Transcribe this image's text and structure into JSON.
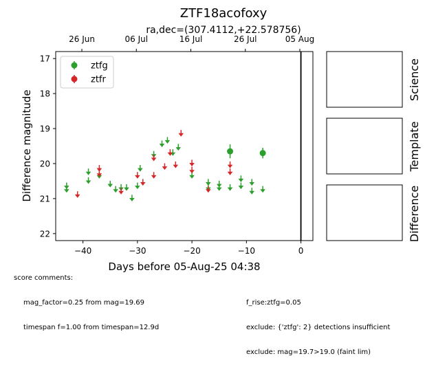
{
  "chart_data": {
    "type": "scatter",
    "title": "ZTF18acofoxy",
    "subtitle": "ra,dec=(307.4112,+22.578756)",
    "xlabel": "Days before 05-Aug-25 04:38",
    "ylabel": "Difference magnitude",
    "xlim": [
      -45,
      2.2
    ],
    "ylim": [
      22.2,
      16.8
    ],
    "y_inverted": true,
    "x_ticks": [
      -40,
      -30,
      -20,
      -10,
      0
    ],
    "y_ticks": [
      17,
      18,
      19,
      20,
      21,
      22
    ],
    "top_axis_ticks": [
      {
        "label": "26 Jun",
        "x": -40.2
      },
      {
        "label": "06 Jul",
        "x": -30.2
      },
      {
        "label": "16 Jul",
        "x": -20.2
      },
      {
        "label": "26 Jul",
        "x": -10.2
      },
      {
        "label": "05 Aug",
        "x": -0.2
      }
    ],
    "vertical_line_x": 0,
    "legend_position": "upper-left",
    "series": [
      {
        "name": "ztfg",
        "color": "#2ca02c",
        "upper_limits": [
          {
            "x": -43,
            "y": 20.6
          },
          {
            "x": -43,
            "y": 20.7
          },
          {
            "x": -39,
            "y": 20.2
          },
          {
            "x": -39,
            "y": 20.45
          },
          {
            "x": -37,
            "y": 20.3
          },
          {
            "x": -35,
            "y": 20.55
          },
          {
            "x": -34,
            "y": 20.7
          },
          {
            "x": -33,
            "y": 20.65
          },
          {
            "x": -32,
            "y": 20.65
          },
          {
            "x": -31,
            "y": 20.95
          },
          {
            "x": -30,
            "y": 20.6
          },
          {
            "x": -29.5,
            "y": 20.1
          },
          {
            "x": -27,
            "y": 19.7
          },
          {
            "x": -25.5,
            "y": 19.4
          },
          {
            "x": -24.5,
            "y": 19.3
          },
          {
            "x": -23.5,
            "y": 19.65
          },
          {
            "x": -22.5,
            "y": 19.5
          },
          {
            "x": -20,
            "y": 20.3
          },
          {
            "x": -17,
            "y": 20.5
          },
          {
            "x": -17,
            "y": 20.65
          },
          {
            "x": -15,
            "y": 20.55
          },
          {
            "x": -15,
            "y": 20.65
          },
          {
            "x": -13,
            "y": 20.65
          },
          {
            "x": -11,
            "y": 20.4
          },
          {
            "x": -11,
            "y": 20.6
          },
          {
            "x": -9,
            "y": 20.5
          },
          {
            "x": -9,
            "y": 20.75
          },
          {
            "x": -7,
            "y": 20.7
          }
        ],
        "detections": [
          {
            "x": -13,
            "y": 19.65,
            "err": 0.2
          },
          {
            "x": -7,
            "y": 19.7,
            "err": 0.15
          }
        ]
      },
      {
        "name": "ztfr",
        "color": "#d62728",
        "upper_limits": [
          {
            "x": -41,
            "y": 20.85
          },
          {
            "x": -37,
            "y": 20.1
          },
          {
            "x": -37,
            "y": 20.25
          },
          {
            "x": -33,
            "y": 20.75
          },
          {
            "x": -30,
            "y": 20.3
          },
          {
            "x": -29,
            "y": 20.5
          },
          {
            "x": -27,
            "y": 20.3
          },
          {
            "x": -27,
            "y": 19.8
          },
          {
            "x": -25,
            "y": 20.05
          },
          {
            "x": -24,
            "y": 19.65
          },
          {
            "x": -23,
            "y": 20.0
          },
          {
            "x": -22,
            "y": 19.1
          },
          {
            "x": -20,
            "y": 19.95
          },
          {
            "x": -20,
            "y": 20.15
          },
          {
            "x": -17,
            "y": 20.7
          },
          {
            "x": -13,
            "y": 20.0
          },
          {
            "x": -13,
            "y": 20.2
          }
        ],
        "detections": []
      }
    ]
  },
  "cutouts": {
    "science_label": "Science",
    "template_label": "Template",
    "difference_label": "Difference"
  },
  "comments": {
    "heading": "score comments:",
    "left": [
      "mag_factor=0.25 from mag=19.69",
      "timespan f=1.00 from timespan=12.9d"
    ],
    "right": [
      "f_rise:ztfg=0.05",
      "exclude: {'ztfg': 2} detections insufficient",
      "exclude: mag=19.7>19.0 (faint lim)"
    ]
  }
}
